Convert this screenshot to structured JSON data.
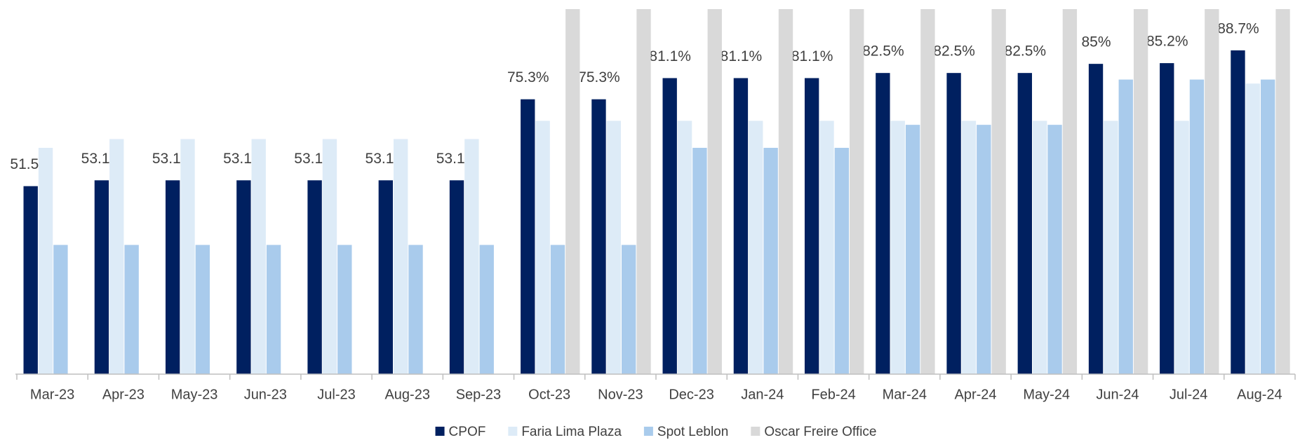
{
  "chart_data": {
    "type": "bar",
    "categories": [
      "Mar-23",
      "Apr-23",
      "May-23",
      "Jun-23",
      "Jul-23",
      "Aug-23",
      "Sep-23",
      "Oct-23",
      "Nov-23",
      "Dec-23",
      "Jan-24",
      "Feb-24",
      "Mar-24",
      "Apr-24",
      "May-24",
      "Jun-24",
      "Jul-24",
      "Aug-24"
    ],
    "series": [
      {
        "name": "CPOF",
        "color": "#002060",
        "values": [
          51.5,
          53.1,
          53.1,
          53.1,
          53.1,
          53.1,
          53.1,
          75.3,
          75.3,
          81.1,
          81.1,
          81.1,
          82.5,
          82.5,
          82.5,
          85,
          85.2,
          88.7
        ],
        "value_labels": [
          "51.5%",
          "53.1%",
          "53.1%",
          "53.1%",
          "53.1%",
          "53.1%",
          "53.1%",
          "75.3%",
          "75.3%",
          "81.1%",
          "81.1%",
          "81.1%",
          "82.5%",
          "82.5%",
          "82.5%",
          "85%",
          "85.2%",
          "88.7%"
        ]
      },
      {
        "name": "Faria Lima Plaza",
        "color": "#ddebf7",
        "values": [
          62,
          64.4,
          64.4,
          64.4,
          64.4,
          64.4,
          64.4,
          69.4,
          69.4,
          69.4,
          69.4,
          69.4,
          69.4,
          69.4,
          69.4,
          69.4,
          69.4,
          79.6
        ]
      },
      {
        "name": "Spot Leblon",
        "color": "#a9cbec",
        "values": [
          35.4,
          35.4,
          35.4,
          35.4,
          35.4,
          35.4,
          35.4,
          35.4,
          35.4,
          62,
          62,
          62,
          68.3,
          68.3,
          68.3,
          80.7,
          80.7,
          80.7
        ]
      },
      {
        "name": "Oscar Freire Office",
        "color": "#d9d9d9",
        "values": [
          null,
          null,
          null,
          null,
          null,
          null,
          null,
          100,
          100,
          100,
          100,
          100,
          100,
          100,
          100,
          100,
          100,
          100
        ]
      }
    ],
    "ylim": [
      0,
      100
    ],
    "legend": "bottom"
  }
}
